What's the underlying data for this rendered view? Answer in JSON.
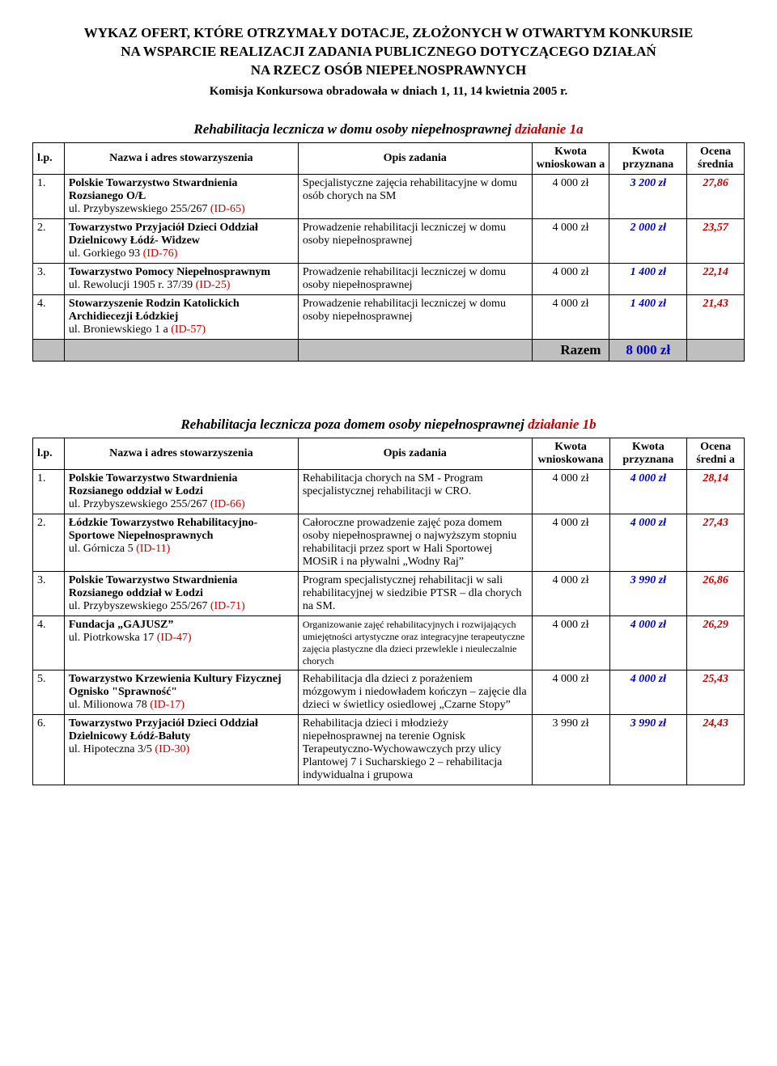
{
  "header": {
    "line1": "WYKAZ OFERT, KTÓRE OTRZYMAŁY DOTACJE, ZŁOŻONYCH W OTWARTYM KONKURSIE",
    "line2": "NA WSPARCIE REALIZACJI ZADANIA PUBLICZNEGO DOTYCZĄCEGO DZIAŁAŃ",
    "line3": "NA RZECZ OSÓB NIEPEŁNOSPRAWNYCH",
    "sub": "Komisja Konkursowa obradowała w dniach 1, 11, 14 kwietnia 2005 r."
  },
  "cols": {
    "lp": "l.p.",
    "name": "Nazwa i adres stowarzyszenia",
    "desc": "Opis zadania",
    "kw": "Kwota wnioskowan a",
    "kw2": "Kwota wnioskowana",
    "kp": "Kwota przyznana",
    "oc": "Ocena średnia",
    "oc2": "Ocena średni a"
  },
  "section1": {
    "titleMain": "Rehabilitacja lecznicza w domu osoby niepełnosprawnej ",
    "titleRed": "działanie 1a",
    "rows": [
      {
        "lp": "1.",
        "name_b": "Polskie Towarzystwo Stwardnienia Rozsianego O/Ł",
        "addr_pre": "ul. Przybyszewskiego 255/267 ",
        "id": "(ID-65)",
        "desc": "Specjalistyczne zajęcia rehabilitacyjne w domu osób chorych na SM",
        "kw": "4 000 zł",
        "kp": "3 200 zł",
        "oc": "27,86"
      },
      {
        "lp": "2.",
        "name_b": "Towarzystwo Przyjaciół Dzieci Oddział Dzielnicowy Łódź- Widzew",
        "addr_pre": "ul. Gorkiego 93  ",
        "id": "(ID-76)",
        "desc": "Prowadzenie rehabilitacji leczniczej w domu osoby niepełnosprawnej",
        "kw": "4 000 zł",
        "kp": "2 000 zł",
        "oc": "23,57"
      },
      {
        "lp": "3.",
        "name_b": "Towarzystwo Pomocy Niepełnosprawnym",
        "addr_pre": "ul. Rewolucji 1905 r. 37/39 ",
        "id": "(ID-25)",
        "desc": "Prowadzenie rehabilitacji leczniczej w domu osoby niepełnosprawnej",
        "kw": "4 000 zł",
        "kp": "1 400 zł",
        "oc": "22,14"
      },
      {
        "lp": "4.",
        "name_b": "Stowarzyszenie Rodzin Katolickich Archidiecezji Łódzkiej",
        "addr_pre": "ul. Broniewskiego 1 a ",
        "id": "(ID-57)",
        "desc": "Prowadzenie rehabilitacji leczniczej w domu osoby niepełnosprawnej",
        "kw": "4 000 zł",
        "kp": "1 400 zł",
        "oc": "21,43"
      }
    ],
    "razem": {
      "label": "Razem",
      "val": "8 000 zł"
    }
  },
  "section2": {
    "titleMain": "Rehabilitacja lecznicza poza domem osoby niepełnosprawnej ",
    "titleRed": "działanie 1b",
    "rows": [
      {
        "lp": "1.",
        "name_b": "Polskie Towarzystwo Stwardnienia Rozsianego oddział w Łodzi",
        "addr_pre": "ul. Przybyszewskiego 255/267  ",
        "id": "(ID-66)",
        "desc": "Rehabilitacja chorych na SM - Program specjalistycznej rehabilitacji w CRO.",
        "kw": "4 000 zł",
        "kp": "4 000 zł",
        "oc": "28,14"
      },
      {
        "lp": "2.",
        "name_b": "Łódzkie Towarzystwo Rehabilitacyjno-Sportowe Niepełnosprawnych",
        "addr_pre": "ul. Górnicza 5 ",
        "id": "(ID-11)",
        "desc": "Całoroczne prowadzenie zajęć poza domem osoby niepełnosprawnej o najwyższym stopniu rehabilitacji przez sport w Hali Sportowej MOSiR i na pływalni „Wodny Raj”",
        "kw": "4 000 zł",
        "kp": "4 000 zł",
        "oc": "27,43"
      },
      {
        "lp": "3.",
        "name_b": "Polskie Towarzystwo Stwardnienia Rozsianego oddział w Łodzi",
        "addr_pre": "ul. Przybyszewskiego 255/267 ",
        "id": "(ID-71)",
        "desc": "Program specjalistycznej rehabilitacji w sali rehabilitacyjnej w siedzibie PTSR – dla chorych na SM.",
        "kw": "4 000 zł",
        "kp": "3 990 zł",
        "oc": "26,86"
      },
      {
        "lp": "4.",
        "name_b": "Fundacja „GAJUSZ”",
        "addr_pre": "ul. Piotrkowska 17  ",
        "id": "(ID-47)",
        "desc": "Organizowanie zajęć rehabilitacyjnych i rozwijających umiejętności artystyczne oraz integracyjne terapeutyczne zajęcia plastyczne dla dzieci przewlekle i nieuleczalnie chorych",
        "kw": "4 000 zł",
        "kp": "4 000 zł",
        "oc": "26,29"
      },
      {
        "lp": "5.",
        "name_b": "Towarzystwo Krzewienia Kultury Fizycznej Ognisko \"Sprawność\"",
        "addr_pre": "ul. Milionowa 78 ",
        "id": "(ID-17)",
        "desc": "Rehabilitacja dla dzieci z porażeniem mózgowym i niedowładem kończyn – zajęcie dla dzieci w świetlicy osiedlowej „Czarne Stopy”",
        "kw": "4 000 zł",
        "kp": "4 000 zł",
        "oc": "25,43"
      },
      {
        "lp": "6.",
        "name_b": "Towarzystwo Przyjaciół Dzieci Oddział Dzielnicowy Łódź-Bałuty",
        "addr_pre": "ul. Hipoteczna 3/5  ",
        "id": "(ID-30)",
        "desc": "Rehabilitacja dzieci i młodzieży niepełnosprawnej na terenie Ognisk Terapeutyczno-Wychowawczych przy ulicy Plantowej 7 i Sucharskiego 2 – rehabilitacja indywidualna i  grupowa",
        "kw": "3 990 zł",
        "kp": "3 990 zł",
        "oc": "24,43"
      }
    ]
  },
  "section2_desc_small_rows": [
    "4."
  ]
}
